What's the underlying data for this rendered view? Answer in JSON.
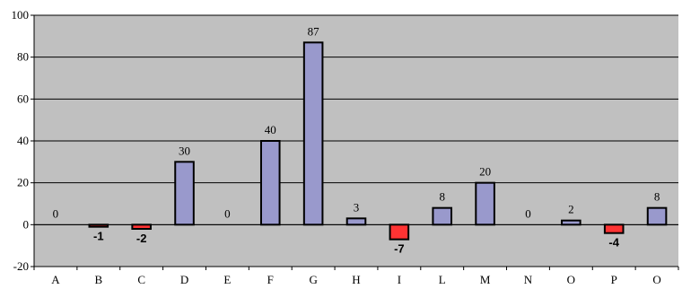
{
  "chart_data": {
    "type": "bar",
    "categories": [
      "A",
      "B",
      "C",
      "D",
      "E",
      "F",
      "G",
      "H",
      "I",
      "L",
      "M",
      "N",
      "O",
      "P",
      "O"
    ],
    "values": [
      0,
      -1,
      -2,
      30,
      0,
      40,
      87,
      3,
      -7,
      8,
      20,
      0,
      2,
      -4,
      8
    ],
    "data_labels": [
      "0",
      "-1",
      "-2",
      "30",
      "0",
      "40",
      "87",
      "3",
      "-7",
      "8",
      "20",
      "0",
      "2",
      "-4",
      "8"
    ],
    "ylim": [
      -20,
      100
    ],
    "yticks": [
      -20,
      0,
      20,
      40,
      60,
      80,
      100
    ],
    "title": "",
    "xlabel": "",
    "ylabel": "",
    "grid": "horizontal",
    "legend": "none",
    "colors": {
      "plot_background": "#c0c0c0",
      "positive_bar": "#9999cc",
      "negative_bar": "#ff3333",
      "bar_outline": "#000000",
      "gridline": "#000000"
    }
  }
}
